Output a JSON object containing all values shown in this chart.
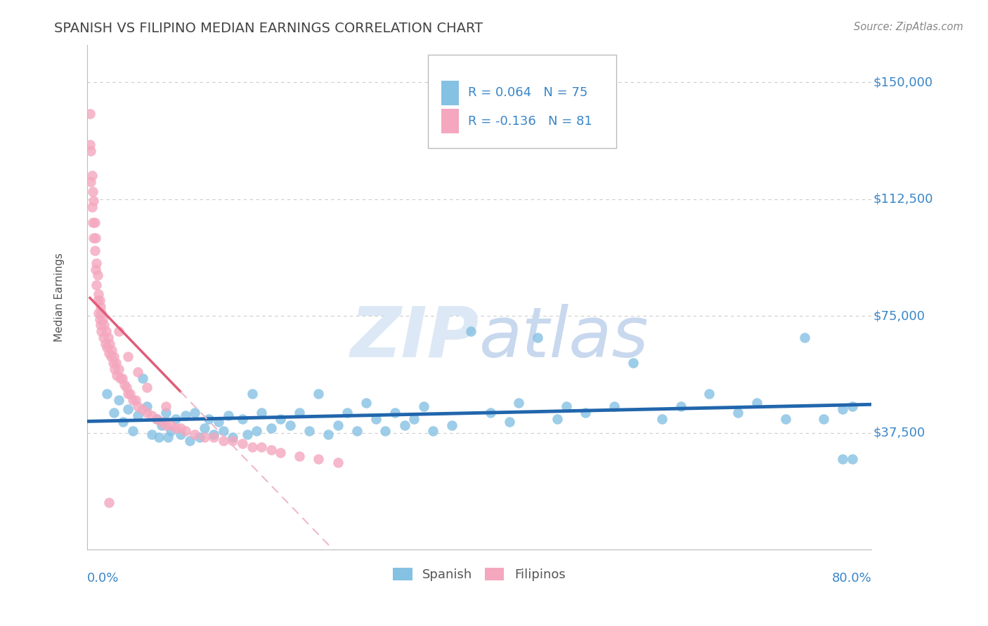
{
  "title": "SPANISH VS FILIPINO MEDIAN EARNINGS CORRELATION CHART",
  "source": "Source: ZipAtlas.com",
  "ylabel": "Median Earnings",
  "ylim": [
    0,
    162000
  ],
  "xlim": [
    -0.003,
    0.82
  ],
  "legend_blue_r": "R = 0.064",
  "legend_blue_n": "N = 75",
  "legend_pink_r": "R = -0.136",
  "legend_pink_n": "N = 81",
  "blue_color": "#85c1e3",
  "pink_color": "#f4a7be",
  "blue_line_color": "#2166ac",
  "pink_line_color": "#e05c78",
  "pink_dash_color": "#f0b8c8",
  "r_n_color": "#3a86c8",
  "title_color": "#444444",
  "watermark_color": "#dce8f5",
  "grid_color": "#cccccc",
  "background_color": "#ffffff",
  "blue_x": [
    0.018,
    0.025,
    0.03,
    0.035,
    0.04,
    0.045,
    0.05,
    0.055,
    0.06,
    0.065,
    0.07,
    0.072,
    0.075,
    0.08,
    0.082,
    0.085,
    0.09,
    0.095,
    0.1,
    0.105,
    0.11,
    0.115,
    0.12,
    0.125,
    0.13,
    0.135,
    0.14,
    0.145,
    0.15,
    0.16,
    0.165,
    0.17,
    0.175,
    0.18,
    0.19,
    0.2,
    0.21,
    0.22,
    0.23,
    0.24,
    0.25,
    0.26,
    0.27,
    0.28,
    0.29,
    0.3,
    0.31,
    0.32,
    0.33,
    0.34,
    0.35,
    0.36,
    0.38,
    0.4,
    0.42,
    0.44,
    0.45,
    0.47,
    0.49,
    0.5,
    0.52,
    0.55,
    0.57,
    0.6,
    0.62,
    0.65,
    0.68,
    0.7,
    0.73,
    0.75,
    0.77,
    0.79,
    0.8,
    0.8,
    0.79
  ],
  "blue_y": [
    50000,
    44000,
    48000,
    41000,
    45000,
    38000,
    43000,
    55000,
    46000,
    37000,
    42000,
    36000,
    40000,
    44000,
    36000,
    38000,
    42000,
    37000,
    43000,
    35000,
    44000,
    36000,
    39000,
    42000,
    37000,
    41000,
    38000,
    43000,
    36000,
    42000,
    37000,
    50000,
    38000,
    44000,
    39000,
    42000,
    40000,
    44000,
    38000,
    50000,
    37000,
    40000,
    44000,
    38000,
    47000,
    42000,
    38000,
    44000,
    40000,
    42000,
    46000,
    38000,
    40000,
    70000,
    44000,
    41000,
    47000,
    68000,
    42000,
    46000,
    44000,
    46000,
    60000,
    42000,
    46000,
    50000,
    44000,
    47000,
    42000,
    68000,
    42000,
    29000,
    46000,
    29000,
    45000
  ],
  "pink_x": [
    0.0,
    0.0,
    0.001,
    0.001,
    0.002,
    0.002,
    0.003,
    0.003,
    0.004,
    0.004,
    0.005,
    0.005,
    0.006,
    0.006,
    0.007,
    0.007,
    0.008,
    0.008,
    0.009,
    0.009,
    0.01,
    0.01,
    0.011,
    0.011,
    0.012,
    0.012,
    0.013,
    0.014,
    0.015,
    0.016,
    0.017,
    0.018,
    0.019,
    0.02,
    0.021,
    0.022,
    0.023,
    0.024,
    0.025,
    0.026,
    0.027,
    0.028,
    0.03,
    0.032,
    0.034,
    0.036,
    0.038,
    0.04,
    0.042,
    0.045,
    0.048,
    0.05,
    0.055,
    0.06,
    0.065,
    0.07,
    0.075,
    0.08,
    0.085,
    0.09,
    0.095,
    0.1,
    0.11,
    0.12,
    0.13,
    0.14,
    0.15,
    0.16,
    0.17,
    0.18,
    0.19,
    0.2,
    0.22,
    0.24,
    0.26,
    0.03,
    0.04,
    0.05,
    0.06,
    0.08,
    0.02
  ],
  "pink_y": [
    140000,
    130000,
    128000,
    118000,
    120000,
    110000,
    115000,
    105000,
    112000,
    100000,
    105000,
    96000,
    100000,
    90000,
    92000,
    85000,
    88000,
    80000,
    82000,
    76000,
    80000,
    74000,
    78000,
    72000,
    76000,
    70000,
    74000,
    68000,
    72000,
    66000,
    70000,
    65000,
    68000,
    63000,
    66000,
    62000,
    64000,
    60000,
    62000,
    58000,
    60000,
    56000,
    58000,
    55000,
    55000,
    53000,
    52000,
    50000,
    50000,
    48000,
    48000,
    46000,
    45000,
    44000,
    43000,
    42000,
    41000,
    40000,
    40000,
    39000,
    39000,
    38000,
    37000,
    36000,
    36000,
    35000,
    35000,
    34000,
    33000,
    33000,
    32000,
    31000,
    30000,
    29000,
    28000,
    70000,
    62000,
    57000,
    52000,
    46000,
    15000
  ]
}
